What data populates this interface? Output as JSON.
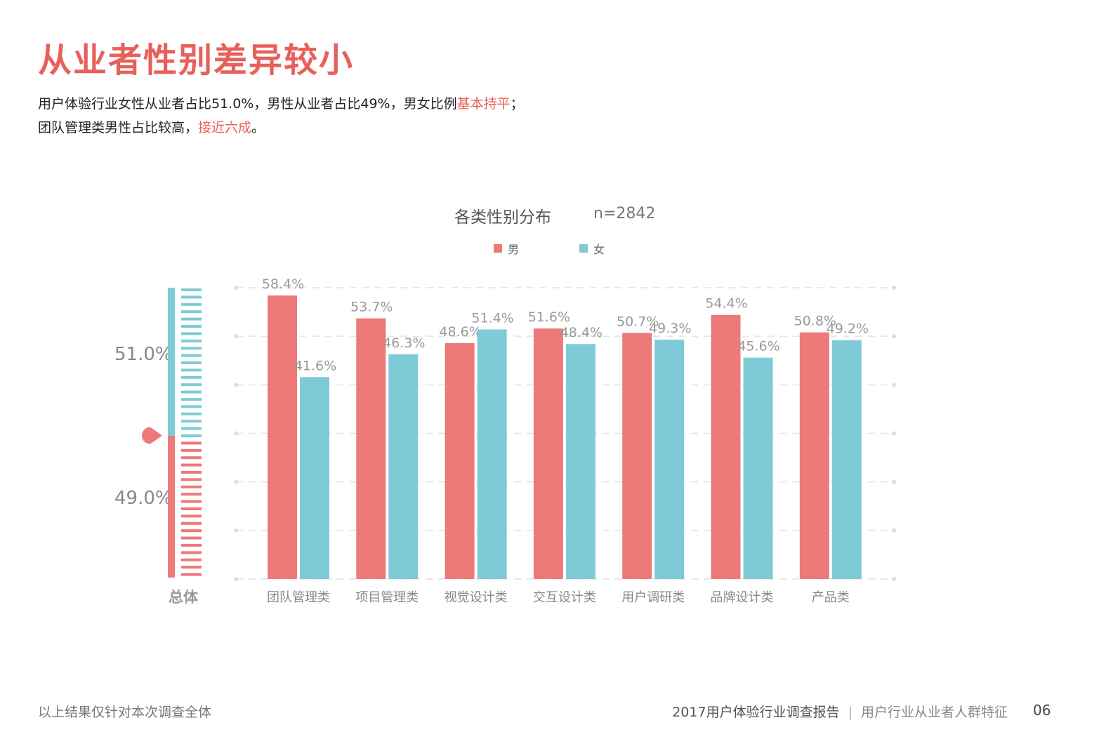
{
  "header": {
    "title": "从业者性别差异较小",
    "line1_a": "用户体验行业女性从业者占比51.0%，男性从业者占比49%，男女比例",
    "line1_hl": "基本持平",
    "line1_b": "；",
    "line2_a": "团队管理类男性占比较高，",
    "line2_hl": "接近六成",
    "line2_b": "。"
  },
  "footer": {
    "note": "以上结果仅针对本次调查全体",
    "report": "2017用户体验行业调查报告",
    "section": "用户行业从业者人群特征",
    "page": "06"
  },
  "colors": {
    "male": "#ec7a78",
    "female": "#7ecbd7",
    "accent": "#e8605a"
  },
  "gauge": {
    "label": "总体",
    "female_value": 51.0,
    "male_value": 49.0,
    "female_label": "51.0%",
    "male_label": "49.0%"
  },
  "chart_data": {
    "type": "bar",
    "title": "各类性别分布",
    "subtitle": "n=2842",
    "categories": [
      "团队管理类",
      "项目管理类",
      "视觉设计类",
      "交互设计类",
      "用户调研类",
      "品牌设计类",
      "产品类"
    ],
    "series": [
      {
        "name": "男",
        "values": [
          58.4,
          53.7,
          48.6,
          51.6,
          50.7,
          54.4,
          50.8
        ]
      },
      {
        "name": "女",
        "values": [
          41.6,
          46.3,
          51.4,
          48.4,
          49.3,
          45.6,
          49.2
        ]
      }
    ],
    "ylim": [
      0,
      60
    ],
    "grid": true,
    "legend": "top-center",
    "unit": "%"
  }
}
